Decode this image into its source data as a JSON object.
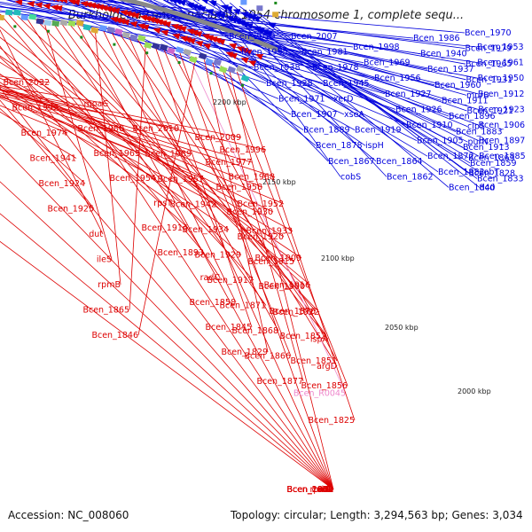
{
  "title": "Burkholderia cenocepacia AU 1054 chromosome 1, complete sequ...",
  "footer": {
    "accession": "Accession: NC_008060",
    "summary": "Topology: circular; Length: 3,294,563 bp; Genes: 3,034"
  },
  "colors": {
    "forward": "#0000dd",
    "reverse": "#dd0000",
    "rna": "#ee88cc",
    "backbone": "#888888",
    "tick": "#1a8a1a"
  },
  "scale_marks": [
    "2200 kbp",
    "2150 kbp",
    "2100 kbp",
    "2050 kbp",
    "2000 kbp"
  ],
  "forward_labels": [
    "Bcen_2019",
    "Bcen_2007",
    "Bcen_1998",
    "Bcen_1986",
    "Bcen_1970",
    "Bcen_1953",
    "Bcen_1995",
    "Bcen_1981",
    "Bcen_1969",
    "Bcen_1940",
    "Bcen_1979",
    "Bcen_1961",
    "Bcen_1938",
    "Bcen_1978",
    "Bcen_1956",
    "Bcen_1937",
    "Bcen_1965",
    "Bcen_1950",
    "Bcen_1928",
    "Bcen_1945",
    "Bcen_1927",
    "Bcen_1960",
    "Bcen_1931",
    "Bcen_1912",
    "Bcen_1971",
    "xerD",
    "Bcen_1926",
    "Bcen_1911",
    "murB",
    "Bcen_1923",
    "Bcen_1907",
    "xseA",
    "Bcen_1910",
    "Bcen_1896",
    "Bcen_1921",
    "Bcen_1906",
    "Bcen_1889",
    "Bcen_1919",
    "Bcen_1905",
    "Bcen_1883",
    "clpS",
    "Bcen_1897",
    "Bcen_1878",
    "ispH",
    "Bcen_1872",
    "Bcen_1913",
    "purN",
    "Bcen_1885",
    "Bcen_1867",
    "Bcen_1864",
    "Bcen_1882",
    "Bcen_1859",
    "Bcen_1863",
    "cobT",
    "cobS",
    "Bcen_1862",
    "Bcen_1840",
    "Bcen_1833",
    "Bcen_1828",
    "dcd"
  ],
  "reverse_labels": [
    "Bcen_2032",
    "moaC",
    "Bcen_2010",
    "Bcen_2009",
    "Bcen_2002",
    "Bcen_1996",
    "Bcen_1992",
    "Bcen_1980",
    "Bcen_1989",
    "Bcen_1977",
    "Bcen_1976",
    "Bcen_1968",
    "Bcen_1974",
    "Bcen_1963",
    "Bcen_1957",
    "Bcen_1958",
    "Bcen_1947",
    "Bcen_1952",
    "Bcen_1941",
    "Bcen_1954",
    "Bcen_1942",
    "Bcen_1930",
    "Bcen_1951",
    "Bcen_1933",
    "Bcen_1924",
    "rpsT",
    "Bcen_1934",
    "Bcen_1920",
    "Bcen_1918",
    "Bcen_1909",
    "Bcen_1925",
    "Bcen_1914",
    "Bcen_1929",
    "Bcen_1915",
    "adk",
    "Bcen_1916",
    "dut",
    "Bcen_1893",
    "Bcen_1917",
    "Bcen_1900",
    "Bcen_1881",
    "Bcen_1922",
    "ileS",
    "radC",
    "Bcen_1871",
    "Bcen_1876",
    "Bcen_1903",
    "lspA",
    "rpmB",
    "Bcen_1858",
    "Bcen_1868",
    "Bcen_1852",
    "rpmG",
    "argD",
    "Bcen_1865",
    "Bcen_1845",
    "Bcen_1866",
    "Bcen_1851",
    "cobD",
    "Bcen_R0045",
    "Bcen_1846",
    "Bcen_1829",
    "Bcen_1877",
    "Bcen_1856",
    "Bcen_1836",
    "Bcen_1825"
  ],
  "rna_labels": [
    "Bcen_R0045"
  ]
}
